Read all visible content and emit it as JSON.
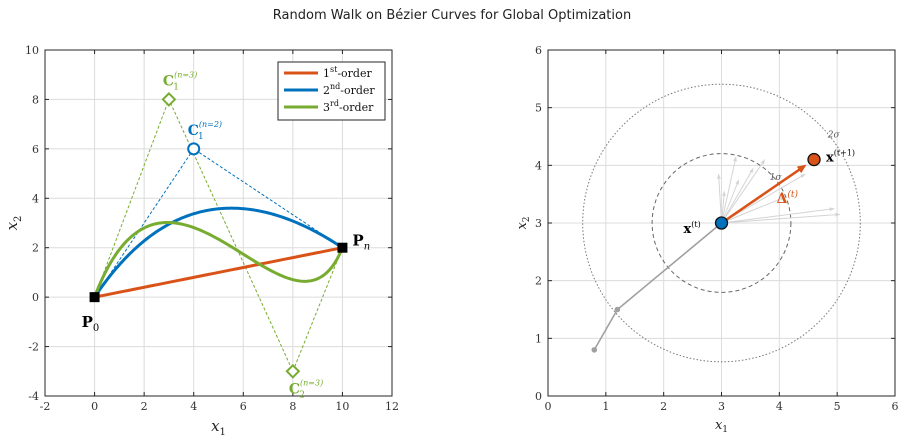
{
  "title": "Random Walk on Bézier Curves for Global Optimization",
  "colors": {
    "orange": "#D95319",
    "blue": "#0072BD",
    "green": "#77AC30",
    "grid": "#dcdcdc",
    "gray": "#a0a0a0"
  },
  "chart_data": [
    {
      "type": "line",
      "xlabel": "x",
      "xlabel_sub": "1",
      "ylabel": "x",
      "ylabel_sub": "2",
      "xlim": [
        -2,
        12
      ],
      "ylim": [
        -4,
        10
      ],
      "xticks": [
        -2,
        0,
        2,
        4,
        6,
        8,
        10,
        12
      ],
      "yticks": [
        -4,
        -2,
        0,
        2,
        4,
        6,
        8,
        10
      ],
      "grid": true,
      "legend_position": "top-right",
      "points": {
        "P0": {
          "x": 0,
          "y": 0,
          "label": "P",
          "sub": "0"
        },
        "Pn": {
          "x": 10,
          "y": 2,
          "label": "P",
          "sub": "n"
        },
        "C1_n2": {
          "x": 4,
          "y": 6,
          "label": "C",
          "sub": "1",
          "sup": "(n=2)"
        },
        "C1_n3": {
          "x": 3,
          "y": 8,
          "label": "C",
          "sub": "1",
          "sup": "(n=3)"
        },
        "C2_n3": {
          "x": 8,
          "y": -3,
          "label": "C",
          "sub": "2",
          "sup": "(n=3)"
        }
      },
      "series": [
        {
          "name": "1st-order",
          "name_base": "1",
          "name_sup": "st",
          "name_tail": "-order",
          "control": [
            [
              0,
              0
            ],
            [
              10,
              2
            ]
          ]
        },
        {
          "name": "2nd-order",
          "name_base": "2",
          "name_sup": "nd",
          "name_tail": "-order",
          "control": [
            [
              0,
              0
            ],
            [
              4,
              6
            ],
            [
              10,
              2
            ]
          ]
        },
        {
          "name": "3rd-order",
          "name_base": "3",
          "name_sup": "rd",
          "name_tail": "-order",
          "control": [
            [
              0,
              0
            ],
            [
              3,
              8
            ],
            [
              8,
              -3
            ],
            [
              10,
              2
            ]
          ]
        }
      ]
    },
    {
      "type": "scatter",
      "xlabel": "x",
      "xlabel_sub": "1",
      "ylabel": "x",
      "ylabel_sub": "2",
      "xlim": [
        0,
        6
      ],
      "ylim": [
        0,
        6
      ],
      "xticks": [
        0,
        1,
        2,
        3,
        4,
        5,
        6
      ],
      "yticks": [
        0,
        1,
        2,
        3,
        4,
        5,
        6
      ],
      "grid": true,
      "history": [
        [
          0.8,
          0.8
        ],
        [
          1.2,
          1.5
        ],
        [
          3.0,
          3.0
        ]
      ],
      "current": {
        "x": 3.0,
        "y": 3.0,
        "label": "x",
        "sup": "(t)"
      },
      "next": {
        "x": 4.6,
        "y": 4.1,
        "label": "x",
        "sup": "(t+1)"
      },
      "sigma_radius": 1.2,
      "circles": [
        {
          "r": 1.2,
          "label": "1σ"
        },
        {
          "r": 2.4,
          "label": "2σ"
        }
      ],
      "delta": {
        "label": "Δ",
        "sup": "(t)"
      },
      "rays": [
        [
          3.25,
          4.15
        ],
        [
          3.75,
          4.1
        ],
        [
          3.55,
          3.95
        ],
        [
          4.45,
          3.85
        ],
        [
          4.1,
          3.45
        ],
        [
          4.95,
          3.25
        ],
        [
          5.05,
          3.15
        ],
        [
          3.3,
          3.75
        ],
        [
          2.95,
          3.85
        ],
        [
          3.05,
          3.55
        ]
      ]
    }
  ]
}
